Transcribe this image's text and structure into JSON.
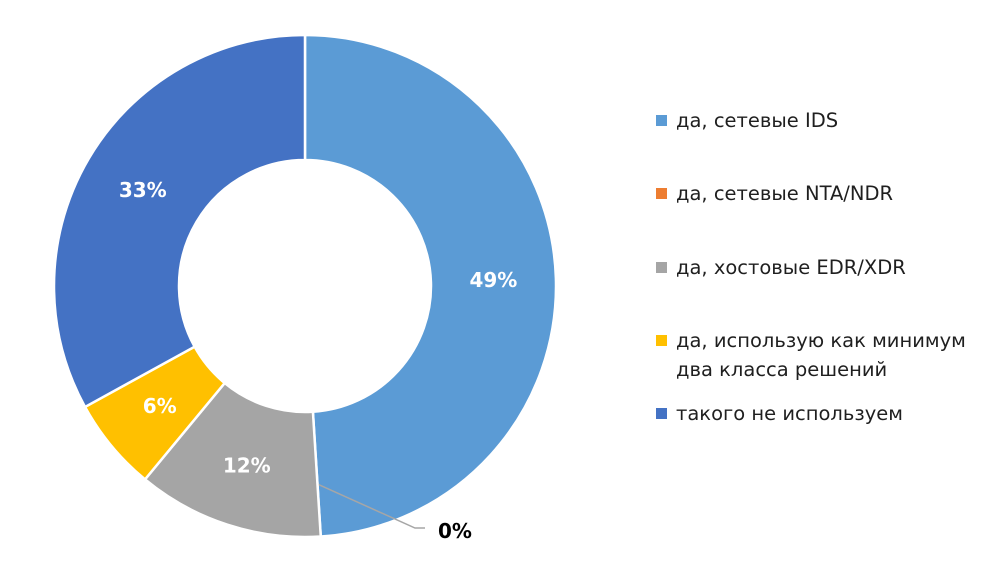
{
  "chart_data": {
    "type": "pie",
    "donut": true,
    "title": "",
    "categories": [
      "да, сетевые IDS",
      "да, сетевые NTA/NDR",
      "да, хостовые EDR/XDR",
      "да, использую как минимум два класса решений",
      "такого не используем"
    ],
    "values": [
      49,
      0,
      12,
      6,
      33
    ],
    "data_labels": [
      "49%",
      "0%",
      "12%",
      "6%",
      "33%"
    ],
    "colors": [
      "#5b9bd5",
      "#ed7d31",
      "#a5a5a5",
      "#ffc000",
      "#4472c4"
    ],
    "legend_position": "right"
  }
}
